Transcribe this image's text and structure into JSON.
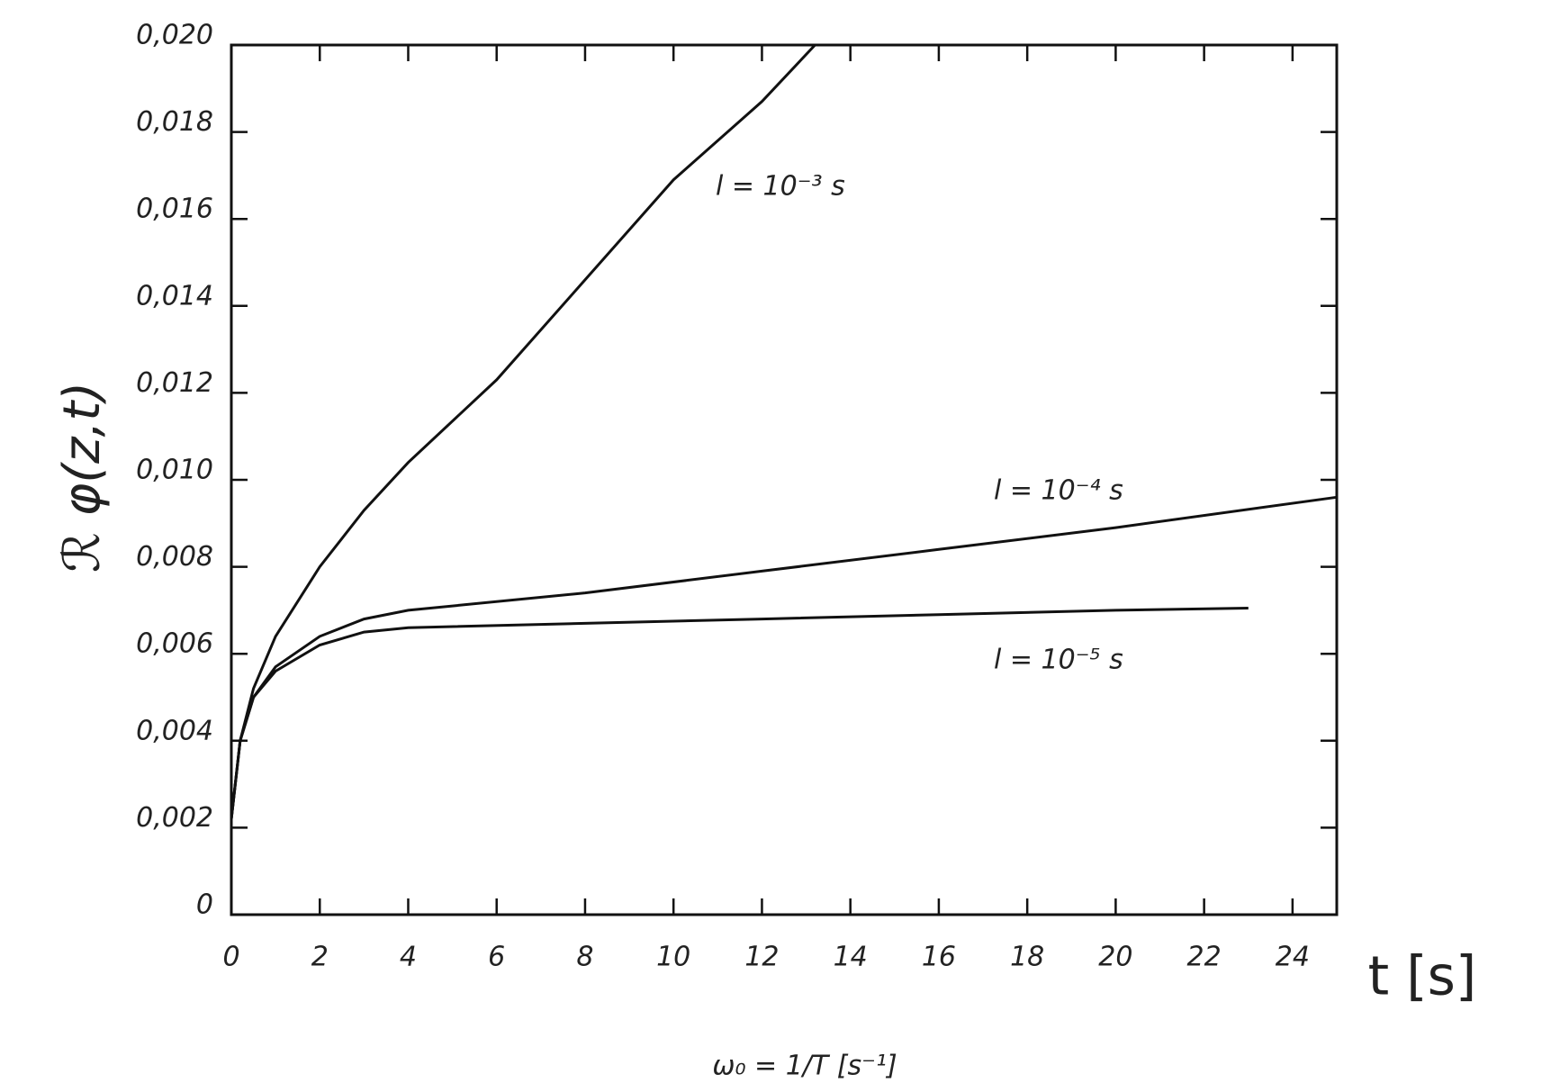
{
  "chart_data": {
    "type": "line",
    "x_label": "ω₀ = 1/T [s⁻¹]",
    "y_label": "ℛ φ(z,t)",
    "x_axis_note": "t [s]",
    "xlim": [
      0,
      25
    ],
    "ylim": [
      0,
      0.02
    ],
    "xticks": [
      0,
      2,
      4,
      6,
      8,
      10,
      12,
      14,
      16,
      18,
      20,
      22,
      24
    ],
    "yticks": [
      0,
      {
        "value": 0.002,
        "label": "0,002"
      },
      {
        "value": 0.004,
        "label": "0,004"
      },
      {
        "value": 0.006,
        "label": "0,006"
      },
      {
        "value": 0.008,
        "label": "0,008"
      },
      {
        "value": 0.01,
        "label": "0,010"
      },
      {
        "value": 0.012,
        "label": "0,012"
      },
      {
        "value": 0.014,
        "label": "0,014"
      },
      {
        "value": 0.016,
        "label": "0,016"
      },
      {
        "value": 0.018,
        "label": "0,018"
      },
      {
        "value": 0.02,
        "label": "0,020"
      }
    ],
    "series": [
      {
        "name": "l = 10⁻³ s",
        "color": "#111111",
        "x": [
          0,
          0.2,
          0.5,
          1,
          2,
          3,
          4,
          6,
          8,
          10,
          12,
          13.2
        ],
        "values": [
          0.0022,
          0.004,
          0.0052,
          0.0064,
          0.008,
          0.0093,
          0.0104,
          0.0123,
          0.0146,
          0.0169,
          0.0187,
          0.02
        ]
      },
      {
        "name": "l = 10⁻⁴ s",
        "color": "#111111",
        "x": [
          0,
          0.2,
          0.5,
          1,
          2,
          3,
          4,
          8,
          12,
          16,
          20,
          25
        ],
        "values": [
          0.0022,
          0.004,
          0.005,
          0.0057,
          0.0064,
          0.0068,
          0.007,
          0.0074,
          0.0079,
          0.0084,
          0.0089,
          0.0096
        ]
      },
      {
        "name": "l = 10⁻⁵ s",
        "color": "#111111",
        "x": [
          0,
          0.2,
          0.5,
          1,
          2,
          3,
          4,
          8,
          12,
          16,
          20,
          23
        ],
        "values": [
          0.0022,
          0.004,
          0.005,
          0.0056,
          0.0062,
          0.0065,
          0.0066,
          0.0067,
          0.0068,
          0.0069,
          0.007,
          0.00705
        ]
      }
    ]
  }
}
